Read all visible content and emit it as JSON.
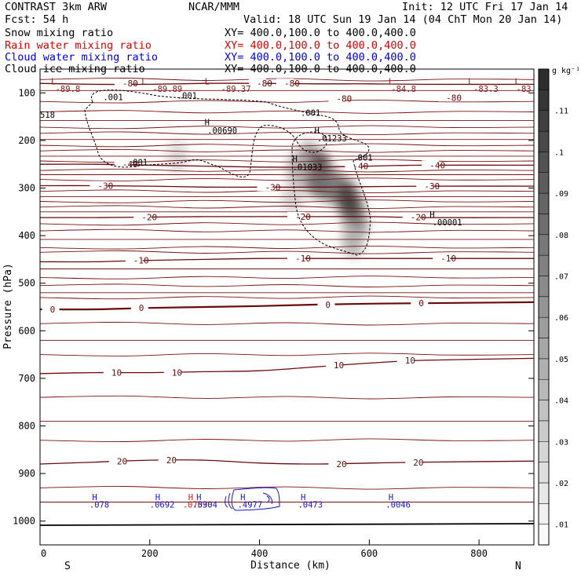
{
  "header": {
    "left_line1": "CONTRAST  3km ARW",
    "center_line1": "NCAR/MMM",
    "right_line1": "Init: 12 UTC Fri 17 Jan 14",
    "left_line2": "Fcst:   54 h",
    "right_line2": "Valid: 18 UTC Sun 19 Jan 14 (04 ChT Mon 20 Jan 14)",
    "fields": [
      {
        "name": "Snow mixing ratio",
        "xy": "XY= 400.0,100.0 to 400.0,400.0",
        "color": "#000000"
      },
      {
        "name": "Rain water mixing ratio",
        "xy": "XY= 400.0,100.0 to 400.0,400.0",
        "color": "#e00000"
      },
      {
        "name": "Cloud water mixing ratio",
        "xy": "XY= 400.0,100.0 to 400.0,400.0",
        "color": "#0000e0"
      },
      {
        "name": "Cloud ice mixing ratio",
        "xy": "XY= 400.0,100.0 to 400.0,400.0",
        "color": "#000000"
      }
    ]
  },
  "chart_data": {
    "type": "cross-section",
    "xlabel": "Distance (km)",
    "ylabel": "Pressure (hPa)",
    "xlim": [
      0,
      900
    ],
    "ylim": [
      1050,
      50
    ],
    "x_ticks": [
      0,
      200,
      400,
      600,
      800
    ],
    "y_ticks": [
      100,
      200,
      300,
      400,
      500,
      600,
      700,
      800,
      900,
      1000
    ],
    "x_end_labels": {
      "left": "S",
      "right": "N"
    },
    "colorbar": {
      "unit": "g kg⁻¹",
      "ticks": [
        ".01",
        ".02",
        ".03",
        ".04",
        ".05",
        ".06",
        ".07",
        ".08",
        ".09",
        ".1",
        ".11"
      ],
      "tick_values": [
        0.01,
        0.02,
        0.03,
        0.04,
        0.05,
        0.06,
        0.07,
        0.08,
        0.09,
        0.1,
        0.11
      ],
      "range": [
        0.005,
        0.12
      ]
    },
    "temperature_contours": [
      {
        "value": -80,
        "label": "-80",
        "points": [
          [
            0,
            80
          ],
          [
            100,
            82
          ],
          [
            200,
            82
          ],
          [
            300,
            80
          ],
          [
            400,
            80
          ],
          [
            500,
            81
          ],
          [
            600,
            81
          ],
          [
            700,
            82
          ],
          [
            900,
            82
          ]
        ]
      },
      {
        "value": -40,
        "label": "-40",
        "points": [
          [
            0,
            250
          ],
          [
            100,
            250
          ],
          [
            200,
            252
          ],
          [
            300,
            254
          ],
          [
            400,
            256
          ],
          [
            500,
            256
          ],
          [
            600,
            254
          ],
          [
            700,
            252
          ],
          [
            900,
            252
          ]
        ]
      },
      {
        "value": -30,
        "label": "-30",
        "points": [
          [
            0,
            295
          ],
          [
            100,
            295
          ],
          [
            200,
            296
          ],
          [
            300,
            298
          ],
          [
            400,
            298
          ],
          [
            500,
            298
          ],
          [
            600,
            297
          ],
          [
            700,
            296
          ],
          [
            900,
            296
          ]
        ]
      },
      {
        "value": -20,
        "label": "-20",
        "points": [
          [
            0,
            362
          ],
          [
            100,
            362
          ],
          [
            200,
            361
          ],
          [
            300,
            360
          ],
          [
            400,
            360
          ],
          [
            500,
            360
          ],
          [
            600,
            360
          ],
          [
            700,
            362
          ],
          [
            900,
            362
          ]
        ]
      },
      {
        "value": -10,
        "label": "-10",
        "points": [
          [
            0,
            455
          ],
          [
            100,
            455
          ],
          [
            200,
            452
          ],
          [
            300,
            450
          ],
          [
            400,
            448
          ],
          [
            500,
            448
          ],
          [
            600,
            448
          ],
          [
            700,
            448
          ],
          [
            900,
            448
          ]
        ]
      },
      {
        "value": 0,
        "label": "0",
        "points": [
          [
            0,
            555
          ],
          [
            100,
            555
          ],
          [
            200,
            552
          ],
          [
            300,
            550
          ],
          [
            400,
            548
          ],
          [
            500,
            545
          ],
          [
            600,
            543
          ],
          [
            700,
            542
          ],
          [
            900,
            540
          ]
        ]
      },
      {
        "value": 10,
        "label": "10",
        "points": [
          [
            0,
            690
          ],
          [
            100,
            688
          ],
          [
            200,
            688
          ],
          [
            300,
            686
          ],
          [
            400,
            684
          ],
          [
            500,
            676
          ],
          [
            600,
            668
          ],
          [
            700,
            662
          ],
          [
            900,
            658
          ]
        ]
      },
      {
        "value": 20,
        "label": "20",
        "points": [
          [
            0,
            880
          ],
          [
            100,
            876
          ],
          [
            200,
            872
          ],
          [
            300,
            872
          ],
          [
            400,
            878
          ],
          [
            500,
            880
          ],
          [
            600,
            878
          ],
          [
            700,
            876
          ],
          [
            900,
            874
          ]
        ]
      }
    ],
    "temperature_labels": [
      {
        "text": "-80",
        "x": 150,
        "p": 80
      },
      {
        "text": "-80",
        "x": 395,
        "p": 80
      },
      {
        "text": "-80",
        "x": 445,
        "p": 80
      },
      {
        "text": "-80",
        "x": 540,
        "p": 112
      },
      {
        "text": "-80",
        "x": 740,
        "p": 110
      },
      {
        "text": "-40",
        "x": 150,
        "p": 250
      },
      {
        "text": "-40",
        "x": 570,
        "p": 254
      },
      {
        "text": "-40",
        "x": 710,
        "p": 252
      },
      {
        "text": "-30",
        "x": 105,
        "p": 295
      },
      {
        "text": "-30",
        "x": 410,
        "p": 298
      },
      {
        "text": "-30",
        "x": 700,
        "p": 296
      },
      {
        "text": "-20",
        "x": 185,
        "p": 361
      },
      {
        "text": "-20",
        "x": 465,
        "p": 360
      },
      {
        "text": "-20",
        "x": 675,
        "p": 361
      },
      {
        "text": "-10",
        "x": 170,
        "p": 452
      },
      {
        "text": "-10",
        "x": 465,
        "p": 448
      },
      {
        "text": "-10",
        "x": 730,
        "p": 448
      },
      {
        "text": "0",
        "x": 18,
        "p": 555
      },
      {
        "text": "0",
        "x": 180,
        "p": 552
      },
      {
        "text": "0",
        "x": 520,
        "p": 545
      },
      {
        "text": "0",
        "x": 690,
        "p": 542
      },
      {
        "text": "10",
        "x": 130,
        "p": 688
      },
      {
        "text": "10",
        "x": 240,
        "p": 688
      },
      {
        "text": "10",
        "x": 535,
        "p": 672
      },
      {
        "text": "10",
        "x": 665,
        "p": 662
      },
      {
        "text": "20",
        "x": 140,
        "p": 874
      },
      {
        "text": "20",
        "x": 230,
        "p": 872
      },
      {
        "text": "20",
        "x": 540,
        "p": 880
      },
      {
        "text": "20",
        "x": 680,
        "p": 877
      }
    ],
    "theta_lines_p": [
      72,
      95,
      118,
      140,
      158,
      172,
      185,
      198,
      210,
      222,
      233,
      243,
      263,
      272,
      282,
      307,
      318,
      328,
      340,
      350,
      375,
      390,
      408,
      425,
      435,
      470,
      488,
      505,
      520,
      530,
      585,
      620,
      650,
      740,
      790,
      830,
      930,
      960
    ],
    "extrema_labels": [
      {
        "text": "L",
        "x": 20,
        "p": 82,
        "color": "#8b1a1a"
      },
      {
        "text": "-89.8",
        "x": 28,
        "p": 98,
        "color": "#8b1a1a"
      },
      {
        "text": "L",
        "x": 185,
        "p": 82,
        "color": "#8b1a1a"
      },
      {
        "text": "-89.89",
        "x": 205,
        "p": 98,
        "color": "#8b1a1a"
      },
      {
        "text": "L",
        "x": 300,
        "p": 82,
        "color": "#8b1a1a"
      },
      {
        "text": "-89.37",
        "x": 330,
        "p": 98,
        "color": "#8b1a1a"
      },
      {
        "text": "L",
        "x": 635,
        "p": 82,
        "color": "#8b1a1a"
      },
      {
        "text": "-84.8",
        "x": 640,
        "p": 98,
        "color": "#8b1a1a"
      },
      {
        "text": "L",
        "x": 780,
        "p": 82,
        "color": "#8b1a1a"
      },
      {
        "text": "-83.3",
        "x": 790,
        "p": 98,
        "color": "#8b1a1a"
      },
      {
        "text": "L",
        "x": 865,
        "p": 82,
        "color": "#8b1a1a"
      },
      {
        "text": "-83",
        "x": 868,
        "p": 98,
        "color": "#8b1a1a"
      },
      {
        "text": ".001",
        "x": 115,
        "p": 115,
        "color": "#000000"
      },
      {
        "text": ".001",
        "x": 250,
        "p": 112,
        "color": "#000000"
      },
      {
        "text": "518",
        "x": 0,
        "p": 152,
        "color": "#000000"
      },
      {
        "text": ".001",
        "x": 475,
        "p": 148,
        "color": "#000000"
      },
      {
        "text": "H",
        "x": 300,
        "p": 168,
        "color": "#000000"
      },
      {
        "text": ".00690",
        "x": 305,
        "p": 185,
        "color": "#000000"
      },
      {
        "text": "H",
        "x": 500,
        "p": 185,
        "color": "#000000"
      },
      {
        "text": ".01233",
        "x": 505,
        "p": 202,
        "color": "#000000"
      },
      {
        "text": "H",
        "x": 460,
        "p": 245,
        "color": "#000000"
      },
      {
        "text": ".01033",
        "x": 460,
        "p": 262,
        "color": "#000000"
      },
      {
        "text": ".001",
        "x": 570,
        "p": 242,
        "color": "#000000"
      },
      {
        "text": ".001",
        "x": 160,
        "p": 252,
        "color": "#000000"
      },
      {
        "text": "H",
        "x": 710,
        "p": 362,
        "color": "#000000"
      },
      {
        "text": ".00001",
        "x": 715,
        "p": 378,
        "color": "#000000"
      },
      {
        "text": "H",
        "x": 95,
        "p": 956,
        "color": "#1515c8"
      },
      {
        "text": ".078",
        "x": 90,
        "p": 972,
        "color": "#1515c8"
      },
      {
        "text": "H",
        "x": 210,
        "p": 956,
        "color": "#1515c8"
      },
      {
        "text": ".0692",
        "x": 200,
        "p": 972,
        "color": "#1515c8"
      },
      {
        "text": "H",
        "x": 270,
        "p": 956,
        "color": "#d01515"
      },
      {
        "text": "H",
        "x": 285,
        "p": 956,
        "color": "#1515c8"
      },
      {
        "text": ".07590",
        "x": 260,
        "p": 972,
        "color": "#d01515"
      },
      {
        "text": ".0304",
        "x": 278,
        "p": 972,
        "color": "#1515c8"
      },
      {
        "text": "H",
        "x": 365,
        "p": 956,
        "color": "#1515c8"
      },
      {
        "text": ".4977",
        "x": 360,
        "p": 972,
        "color": "#1515c8"
      },
      {
        "text": "H",
        "x": 475,
        "p": 956,
        "color": "#1515c8"
      },
      {
        "text": ".0473",
        "x": 470,
        "p": 972,
        "color": "#1515c8"
      },
      {
        "text": "H",
        "x": 635,
        "p": 956,
        "color": "#1515c8"
      },
      {
        "text": ".0046",
        "x": 630,
        "p": 972,
        "color": "#1515c8"
      }
    ],
    "dashed_contour_value": ".001",
    "shaded_cells": [
      {
        "x": 490,
        "p": 240,
        "value": 0.06
      },
      {
        "x": 510,
        "p": 260,
        "value": 0.11
      },
      {
        "x": 520,
        "p": 290,
        "value": 0.09
      },
      {
        "x": 500,
        "p": 280,
        "value": 0.08
      },
      {
        "x": 540,
        "p": 300,
        "value": 0.07
      },
      {
        "x": 560,
        "p": 320,
        "value": 0.1
      },
      {
        "x": 570,
        "p": 350,
        "value": 0.11
      },
      {
        "x": 575,
        "p": 380,
        "value": 0.08
      },
      {
        "x": 570,
        "p": 410,
        "value": 0.04
      },
      {
        "x": 470,
        "p": 260,
        "value": 0.04
      },
      {
        "x": 250,
        "p": 235,
        "value": 0.015
      },
      {
        "x": 460,
        "p": 320,
        "value": 0.02
      }
    ]
  }
}
